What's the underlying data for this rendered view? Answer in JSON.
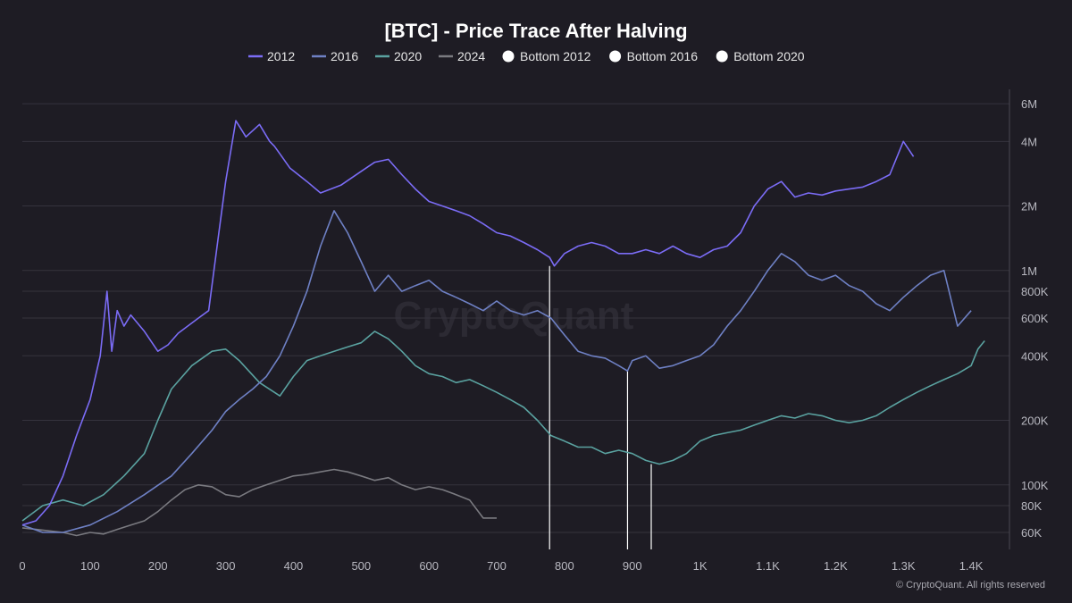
{
  "chart_data": {
    "type": "line",
    "title": "[BTC] - Price Trace After Halving",
    "xlabel": "",
    "ylabel": "",
    "xlim": [
      0,
      1450
    ],
    "ylim": [
      50000,
      7000000
    ],
    "y_scale": "log",
    "grid": true,
    "legend_position": "top-center",
    "x_ticks": [
      0,
      100,
      200,
      300,
      400,
      500,
      600,
      700,
      800,
      900,
      1000,
      1100,
      1200,
      1300,
      1400
    ],
    "x_tick_labels": [
      "0",
      "100",
      "200",
      "300",
      "400",
      "500",
      "600",
      "700",
      "800",
      "900",
      "1K",
      "1.1K",
      "1.2K",
      "1.3K",
      "1.4K"
    ],
    "y_ticks": [
      60000,
      80000,
      100000,
      200000,
      400000,
      600000,
      800000,
      1000000,
      2000000,
      4000000,
      6000000
    ],
    "y_tick_labels": [
      "60K",
      "80K",
      "100K",
      "200K",
      "400K",
      "600K",
      "800K",
      "1M",
      "2M",
      "4M",
      "6M"
    ],
    "series": [
      {
        "name": "2012",
        "color": "#7b6cf6",
        "x": [
          0,
          20,
          40,
          60,
          80,
          100,
          115,
          125,
          132,
          140,
          150,
          160,
          180,
          200,
          215,
          230,
          260,
          275,
          290,
          300,
          315,
          330,
          350,
          365,
          372,
          380,
          395,
          420,
          440,
          470,
          500,
          520,
          540,
          560,
          580,
          600,
          620,
          640,
          660,
          680,
          700,
          720,
          740,
          760,
          778,
          785,
          800,
          820,
          840,
          860,
          880,
          900,
          920,
          940,
          960,
          980,
          1000,
          1020,
          1040,
          1060,
          1080,
          1100,
          1120,
          1140,
          1160,
          1180,
          1200,
          1220,
          1240,
          1260,
          1280,
          1300,
          1315
        ],
        "values": [
          65000,
          68000,
          80000,
          110000,
          170000,
          250000,
          400000,
          800000,
          420000,
          650000,
          550000,
          620000,
          520000,
          420000,
          450000,
          510000,
          600000,
          650000,
          1500000,
          2600000,
          5000000,
          4200000,
          4800000,
          4000000,
          3800000,
          3500000,
          3000000,
          2600000,
          2300000,
          2500000,
          2900000,
          3200000,
          3300000,
          2800000,
          2400000,
          2100000,
          2000000,
          1900000,
          1800000,
          1650000,
          1500000,
          1450000,
          1350000,
          1250000,
          1150000,
          1050000,
          1200000,
          1300000,
          1350000,
          1300000,
          1200000,
          1200000,
          1250000,
          1200000,
          1300000,
          1200000,
          1150000,
          1250000,
          1300000,
          1500000,
          2000000,
          2400000,
          2600000,
          2200000,
          2300000,
          2250000,
          2350000,
          2400000,
          2450000,
          2600000,
          2800000,
          4000000,
          3400000
        ]
      },
      {
        "name": "2016",
        "color": "#6e80c4",
        "x": [
          0,
          30,
          60,
          100,
          140,
          180,
          220,
          250,
          280,
          300,
          320,
          340,
          360,
          380,
          400,
          420,
          440,
          460,
          480,
          500,
          520,
          540,
          560,
          580,
          600,
          620,
          640,
          660,
          680,
          700,
          720,
          740,
          760,
          780,
          800,
          820,
          840,
          860,
          880,
          893,
          900,
          920,
          940,
          960,
          980,
          1000,
          1020,
          1040,
          1060,
          1080,
          1100,
          1120,
          1140,
          1160,
          1180,
          1200,
          1220,
          1240,
          1260,
          1280,
          1300,
          1320,
          1340,
          1360,
          1380,
          1400
        ],
        "values": [
          65000,
          60000,
          60000,
          65000,
          75000,
          90000,
          110000,
          140000,
          180000,
          220000,
          250000,
          280000,
          320000,
          400000,
          550000,
          800000,
          1300000,
          1900000,
          1500000,
          1100000,
          800000,
          950000,
          800000,
          850000,
          900000,
          800000,
          750000,
          700000,
          650000,
          720000,
          650000,
          620000,
          650000,
          600000,
          500000,
          420000,
          400000,
          390000,
          360000,
          340000,
          380000,
          400000,
          350000,
          360000,
          380000,
          400000,
          450000,
          550000,
          650000,
          800000,
          1000000,
          1200000,
          1100000,
          950000,
          900000,
          950000,
          850000,
          800000,
          700000,
          650000,
          750000,
          850000,
          950000,
          1000000,
          550000,
          650000
        ]
      },
      {
        "name": "2020",
        "color": "#5aa2a0",
        "x": [
          0,
          30,
          60,
          90,
          120,
          150,
          180,
          200,
          220,
          250,
          280,
          300,
          320,
          350,
          380,
          400,
          420,
          440,
          460,
          480,
          500,
          520,
          540,
          560,
          580,
          600,
          620,
          640,
          660,
          680,
          700,
          720,
          740,
          760,
          780,
          800,
          820,
          840,
          860,
          880,
          900,
          920,
          940,
          960,
          980,
          1000,
          1020,
          1040,
          1060,
          1080,
          1100,
          1120,
          1140,
          1160,
          1180,
          1200,
          1220,
          1240,
          1260,
          1280,
          1300,
          1320,
          1340,
          1360,
          1380,
          1400,
          1410,
          1420
        ],
        "values": [
          68000,
          80000,
          85000,
          80000,
          90000,
          110000,
          140000,
          200000,
          280000,
          360000,
          420000,
          430000,
          380000,
          300000,
          260000,
          320000,
          380000,
          400000,
          420000,
          440000,
          460000,
          520000,
          480000,
          420000,
          360000,
          330000,
          320000,
          300000,
          310000,
          290000,
          270000,
          250000,
          230000,
          200000,
          170000,
          160000,
          150000,
          150000,
          140000,
          145000,
          140000,
          130000,
          125000,
          130000,
          140000,
          160000,
          170000,
          175000,
          180000,
          190000,
          200000,
          210000,
          205000,
          215000,
          210000,
          200000,
          195000,
          200000,
          210000,
          230000,
          250000,
          270000,
          290000,
          310000,
          330000,
          360000,
          430000,
          470000
        ]
      },
      {
        "name": "2024",
        "color": "#7a7a80",
        "x": [
          0,
          20,
          40,
          60,
          80,
          100,
          120,
          140,
          160,
          180,
          200,
          220,
          240,
          260,
          280,
          300,
          320,
          340,
          360,
          380,
          400,
          420,
          440,
          460,
          480,
          500,
          520,
          540,
          560,
          580,
          600,
          620,
          640,
          660,
          680,
          700
        ],
        "values": [
          63000,
          62000,
          61000,
          60000,
          58000,
          60000,
          59000,
          62000,
          65000,
          68000,
          75000,
          85000,
          95000,
          100000,
          98000,
          90000,
          88000,
          95000,
          100000,
          105000,
          110000,
          112000,
          115000,
          118000,
          115000,
          110000,
          105000,
          108000,
          100000,
          95000,
          98000,
          95000,
          90000,
          85000,
          70000,
          70000
        ]
      }
    ],
    "bottoms": [
      {
        "name": "Bottom 2012",
        "x": 778,
        "value": 1050000,
        "color": "#ffffff"
      },
      {
        "name": "Bottom 2016",
        "x": 893,
        "value": 340000,
        "color": "#ffffff"
      },
      {
        "name": "Bottom 2020",
        "x": 928,
        "value": 125000,
        "color": "#ffffff"
      }
    ],
    "watermark": "CryptoQuant",
    "credit": "© CryptoQuant. All rights reserved"
  }
}
